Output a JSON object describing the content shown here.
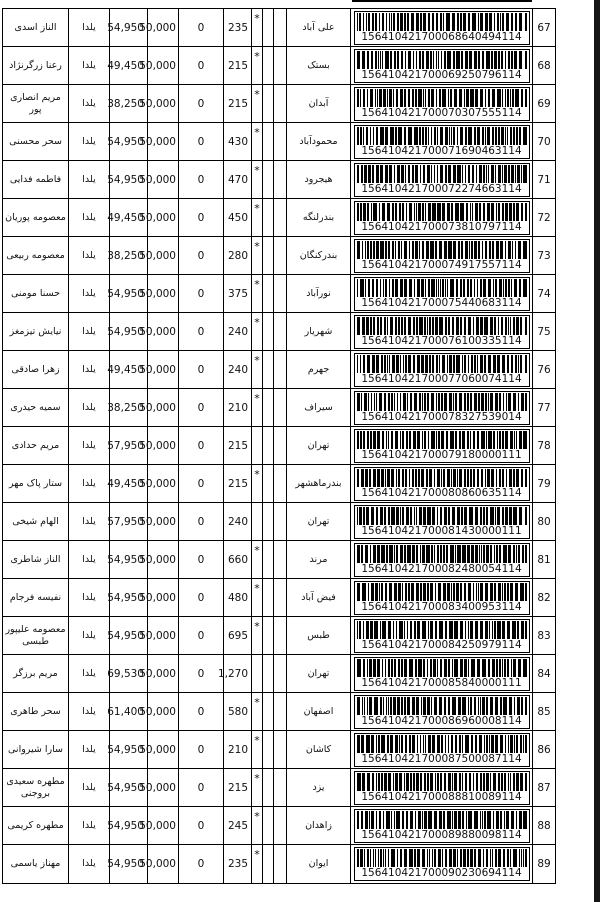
{
  "page": {
    "edge_strip_color": "#161616"
  },
  "rows": [
    {
      "num": "67",
      "name": "الناز اسدی",
      "group": "یلدا",
      "price": "54,950",
      "base": "50,000",
      "zero": "0",
      "qty": "235",
      "star": "*",
      "city": "علی آباد",
      "barcode": "156410421700068640494114"
    },
    {
      "num": "68",
      "name": "رعنا زرگرنژاد",
      "group": "یلدا",
      "price": "49,450",
      "base": "50,000",
      "zero": "0",
      "qty": "215",
      "star": "*",
      "city": "بستک",
      "barcode": "156410421700069250796114"
    },
    {
      "num": "69",
      "name": "مریم انصاری پور",
      "group": "یلدا",
      "price": "38,250",
      "base": "50,000",
      "zero": "0",
      "qty": "215",
      "star": "*",
      "city": "آبدان",
      "barcode": "156410421700070307555114"
    },
    {
      "num": "70",
      "name": "سحر محسنی",
      "group": "یلدا",
      "price": "54,950",
      "base": "50,000",
      "zero": "0",
      "qty": "430",
      "star": "*",
      "city": "محمودآباد",
      "barcode": "156410421700071690463114"
    },
    {
      "num": "71",
      "name": "فاطمه فدایی",
      "group": "یلدا",
      "price": "54,950",
      "base": "50,000",
      "zero": "0",
      "qty": "470",
      "star": "*",
      "city": "هیجرود",
      "barcode": "156410421700072274663114"
    },
    {
      "num": "72",
      "name": "معصومه پوریان",
      "group": "یلدا",
      "price": "49,450",
      "base": "50,000",
      "zero": "0",
      "qty": "450",
      "star": "*",
      "city": "بندرلنگه",
      "barcode": "156410421700073810797114"
    },
    {
      "num": "73",
      "name": "معصومه ربیعی",
      "group": "یلدا",
      "price": "38,250",
      "base": "50,000",
      "zero": "0",
      "qty": "280",
      "star": "*",
      "city": "بندرکنگان",
      "barcode": "156410421700074917557114"
    },
    {
      "num": "74",
      "name": "حسنا مومنی",
      "group": "یلدا",
      "price": "54,950",
      "base": "50,000",
      "zero": "0",
      "qty": "375",
      "star": "*",
      "city": "نورآباد",
      "barcode": "156410421700075440683114"
    },
    {
      "num": "75",
      "name": "نیایش تیزمغز",
      "group": "یلدا",
      "price": "54,950",
      "base": "50,000",
      "zero": "0",
      "qty": "240",
      "star": "*",
      "city": "شهریار",
      "barcode": "156410421700076100335114"
    },
    {
      "num": "76",
      "name": "زهرا صادقی",
      "group": "یلدا",
      "price": "49,450",
      "base": "50,000",
      "zero": "0",
      "qty": "240",
      "star": "*",
      "city": "جهرم",
      "barcode": "156410421700077060074114"
    },
    {
      "num": "77",
      "name": "سمیه حیدری",
      "group": "یلدا",
      "price": "38,250",
      "base": "50,000",
      "zero": "0",
      "qty": "210",
      "star": "*",
      "city": "سیراف",
      "barcode": "156410421700078327539014"
    },
    {
      "num": "78",
      "name": "مریم حدادی",
      "group": "یلدا",
      "price": "57,950",
      "base": "50,000",
      "zero": "0",
      "qty": "215",
      "star": "",
      "city": "تهران",
      "barcode": "156410421700079180000111"
    },
    {
      "num": "79",
      "name": "ستار پاک مهر",
      "group": "یلدا",
      "price": "49,450",
      "base": "50,000",
      "zero": "0",
      "qty": "215",
      "star": "*",
      "city": "بندرماهشهر",
      "barcode": "156410421700080860635114"
    },
    {
      "num": "80",
      "name": "الهام شیخی",
      "group": "یلدا",
      "price": "57,950",
      "base": "50,000",
      "zero": "0",
      "qty": "240",
      "star": "",
      "city": "تهران",
      "barcode": "156410421700081430000111"
    },
    {
      "num": "81",
      "name": "الناز شاطری",
      "group": "یلدا",
      "price": "54,950",
      "base": "50,000",
      "zero": "0",
      "qty": "660",
      "star": "*",
      "city": "مرند",
      "barcode": "156410421700082480054114"
    },
    {
      "num": "82",
      "name": "نفیسه فرجام",
      "group": "یلدا",
      "price": "54,950",
      "base": "50,000",
      "zero": "0",
      "qty": "480",
      "star": "*",
      "city": "فیض آباد",
      "barcode": "156410421700083400953114"
    },
    {
      "num": "83",
      "name": "معصومه علیپور طبسی",
      "group": "یلدا",
      "price": "54,950",
      "base": "50,000",
      "zero": "0",
      "qty": "695",
      "star": "*",
      "city": "طبس",
      "barcode": "156410421700084250979114"
    },
    {
      "num": "84",
      "name": "مریم برزگر",
      "group": "یلدا",
      "price": "69,530",
      "base": "50,000",
      "zero": "0",
      "qty": "1,270",
      "star": "",
      "city": "تهران",
      "barcode": "156410421700085840000111"
    },
    {
      "num": "85",
      "name": "سحر طاهری",
      "group": "یلدا",
      "price": "61,400",
      "base": "50,000",
      "zero": "0",
      "qty": "580",
      "star": "*",
      "city": "اصفهان",
      "barcode": "156410421700086960008114"
    },
    {
      "num": "86",
      "name": "سارا شیروانی",
      "group": "یلدا",
      "price": "54,950",
      "base": "50,000",
      "zero": "0",
      "qty": "210",
      "star": "*",
      "city": "کاشان",
      "barcode": "156410421700087500087114"
    },
    {
      "num": "87",
      "name": "مطهره سعیدی بروجنی",
      "group": "یلدا",
      "price": "54,950",
      "base": "50,000",
      "zero": "0",
      "qty": "215",
      "star": "*",
      "city": "یزد",
      "barcode": "156410421700088810089114"
    },
    {
      "num": "88",
      "name": "مطهره کریمی",
      "group": "یلدا",
      "price": "54,950",
      "base": "50,000",
      "zero": "0",
      "qty": "245",
      "star": "*",
      "city": "زاهدان",
      "barcode": "156410421700089880098114"
    },
    {
      "num": "89",
      "name": "مهناز یاسمی",
      "group": "یلدا",
      "price": "54,950",
      "base": "50,000",
      "zero": "0",
      "qty": "235",
      "star": "*",
      "city": "ایوان",
      "barcode": "156410421700090230694114"
    }
  ]
}
